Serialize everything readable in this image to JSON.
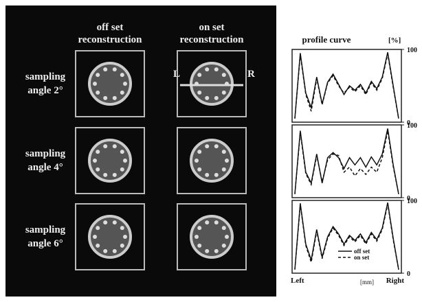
{
  "figure": {
    "column_headers": [
      [
        "off set",
        "reconstruction"
      ],
      [
        "on set",
        "reconstruction"
      ]
    ],
    "row_labels": [
      [
        "sampling",
        "angle 2°"
      ],
      [
        "sampling",
        "angle 4°"
      ],
      [
        "sampling",
        "angle 6°"
      ]
    ],
    "marker_left": "L",
    "marker_right": "R"
  },
  "chart_data": [
    {
      "type": "line",
      "title": "profile curve",
      "ylabel": "[%]",
      "categories": [
        null,
        null,
        null,
        null,
        null,
        null,
        null,
        null,
        null,
        null,
        null,
        null,
        null,
        null,
        null,
        null,
        null,
        null,
        null,
        null
      ],
      "series": [
        {
          "color": "#111111",
          "dash": false,
          "values": [
            5,
            95,
            40,
            20,
            62,
            25,
            55,
            66,
            52,
            38,
            50,
            44,
            52,
            40,
            56,
            46,
            62,
            96,
            50,
            5
          ]
        },
        {
          "color": "#111111",
          "dash": true,
          "values": [
            5,
            93,
            38,
            15,
            60,
            24,
            54,
            64,
            50,
            40,
            48,
            42,
            50,
            38,
            54,
            44,
            60,
            94,
            48,
            5
          ]
        }
      ],
      "ylim": [
        0,
        100
      ],
      "yticks": [
        0,
        100
      ]
    },
    {
      "type": "line",
      "categories": [
        null,
        null,
        null,
        null,
        null,
        null,
        null,
        null,
        null,
        null,
        null,
        null,
        null,
        null,
        null,
        null,
        null,
        null,
        null,
        null
      ],
      "series": [
        {
          "color": "#111111",
          "dash": false,
          "values": [
            5,
            92,
            35,
            20,
            60,
            20,
            55,
            62,
            55,
            40,
            55,
            45,
            55,
            42,
            56,
            45,
            60,
            95,
            45,
            5
          ]
        },
        {
          "color": "#111111",
          "dash": true,
          "values": [
            5,
            90,
            33,
            18,
            58,
            22,
            52,
            60,
            58,
            35,
            42,
            30,
            40,
            32,
            42,
            35,
            55,
            92,
            43,
            5
          ]
        }
      ],
      "ylim": [
        0,
        100
      ],
      "yticks": [
        0,
        100
      ]
    },
    {
      "type": "line",
      "xlabel": "[mm]",
      "x_end_labels": [
        "Left",
        "Right"
      ],
      "categories": [
        null,
        null,
        null,
        null,
        null,
        null,
        null,
        null,
        null,
        null,
        null,
        null,
        null,
        null,
        null,
        null,
        null,
        null,
        null,
        null
      ],
      "series": [
        {
          "name": "off set",
          "color": "#111111",
          "dash": false,
          "values": [
            5,
            96,
            40,
            18,
            60,
            22,
            50,
            64,
            54,
            40,
            52,
            45,
            54,
            42,
            56,
            46,
            62,
            97,
            48,
            5
          ]
        },
        {
          "name": "on set",
          "color": "#111111",
          "dash": true,
          "values": [
            5,
            94,
            38,
            15,
            58,
            20,
            48,
            62,
            52,
            38,
            50,
            43,
            52,
            40,
            54,
            44,
            60,
            95,
            46,
            5
          ]
        }
      ],
      "ylim": [
        0,
        100
      ],
      "yticks": [
        0,
        100
      ]
    }
  ]
}
